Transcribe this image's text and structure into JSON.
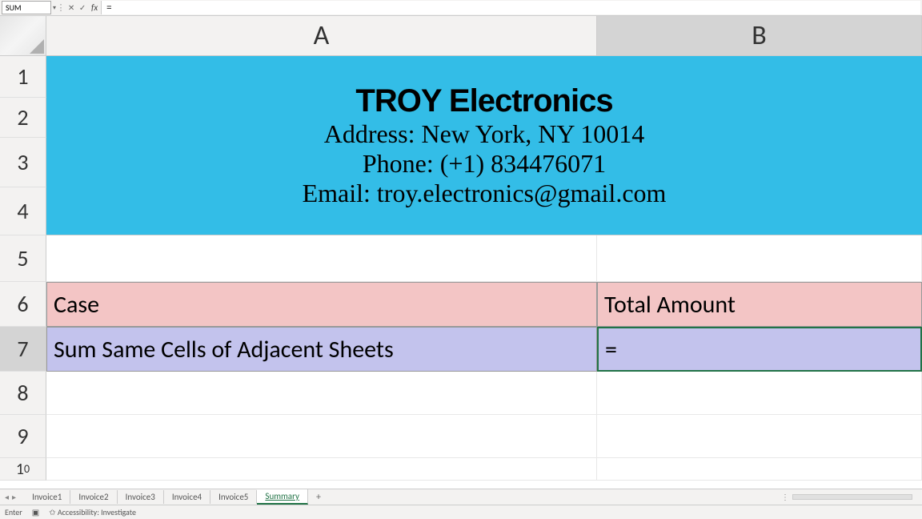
{
  "namebox": {
    "value": "SUM"
  },
  "formulaBar": {
    "value": "="
  },
  "columns": {
    "A": "A",
    "B": "B"
  },
  "rowHeaders": [
    "1",
    "2",
    "3",
    "4",
    "5",
    "6",
    "7",
    "8",
    "9",
    "10"
  ],
  "banner": {
    "title": "TROY Electronics",
    "address": "Address: New York, NY 10014",
    "phone": "Phone: (+1) 834476071",
    "email": "Email: troy.electronics@gmail.com",
    "bg_color": "#33bde7"
  },
  "table": {
    "header": {
      "A": "Case",
      "B": "Total Amount",
      "bg_color": "#f3c5c5"
    },
    "row": {
      "A": "Sum Same Cells of Adjacent Sheets",
      "B": "=",
      "bg_color": "#c3c3ed"
    }
  },
  "tabs": {
    "items": [
      "Invoice1",
      "Invoice2",
      "Invoice3",
      "Invoice4",
      "Invoice5",
      "Summary"
    ],
    "activeIndex": 5
  },
  "statusbar": {
    "mode": "Enter",
    "accessibility": "Accessibility: Investigate"
  },
  "colors": {
    "selection_border": "#217346",
    "header_bg": "#f3f2f1",
    "grid_line": "#e8e8e8",
    "selected_header": "#d4d4d4"
  }
}
